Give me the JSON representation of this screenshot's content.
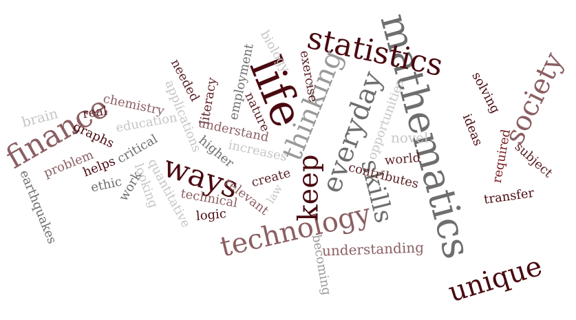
{
  "cloud": {
    "w01": "mathematics",
    "w02": "statistics",
    "w03": "life",
    "w04": "thinking",
    "w05": "everyday",
    "w06": "skills",
    "w07": "society",
    "w08": "finance",
    "w09": "technology",
    "w10": "unique",
    "w11": "ways",
    "w12": "keep",
    "w13": "biology",
    "w14": "exercise",
    "w15": "employment",
    "w16": "literacy",
    "w17": "nature",
    "w18": "needed",
    "w19": "applications",
    "w20": "chemistry",
    "w21": "brain",
    "w22": "real",
    "w23": "education",
    "w24": "graphs",
    "w25": "understand",
    "w26": "increases",
    "w27": "higher",
    "w28": "critical",
    "w29": "problem",
    "w30": "helps",
    "w31": "ethic",
    "w32": "work",
    "w33": "looking",
    "w34": "quantitative",
    "w35": "earthquakes",
    "w36": "relevant",
    "w37": "technical",
    "w38": "logic",
    "w39": "create",
    "w40": "law",
    "w41": "becoming",
    "w42": "understanding",
    "w43": "contributes",
    "w44": "world",
    "w45": "novel",
    "w46": "opportunities",
    "w47": "ideas",
    "w48": "solving",
    "w49": "required",
    "w50": "subject",
    "w51": "transfer"
  },
  "colors": {
    "dark_maroon": "#4a0a10",
    "maroon": "#5a1f24",
    "dusty_rose": "#8b5f62",
    "medium_gray": "#6e6e6e",
    "gray": "#9a9a9a",
    "light_gray": "#c6c6c6",
    "background": "#ffffff"
  }
}
